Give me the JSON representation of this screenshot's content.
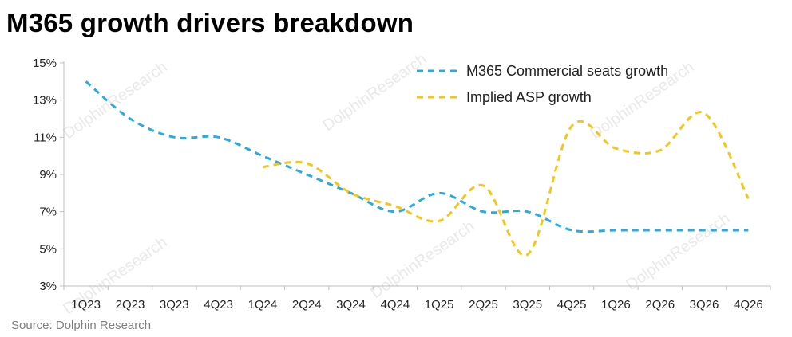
{
  "title": "M365 growth drivers breakdown",
  "source": "Source: Dolphin Research",
  "watermark": "DolphinResearch",
  "chart_data": {
    "type": "line",
    "categories": [
      "1Q23",
      "2Q23",
      "3Q23",
      "4Q23",
      "1Q24",
      "2Q24",
      "3Q24",
      "4Q24",
      "1Q25",
      "2Q25",
      "3Q25",
      "4Q25",
      "1Q26",
      "2Q26",
      "3Q26",
      "4Q26"
    ],
    "ylim": [
      3,
      15
    ],
    "yticks": [
      3,
      5,
      7,
      9,
      11,
      13,
      15
    ],
    "ytick_labels": [
      "3%",
      "5%",
      "7%",
      "9%",
      "11%",
      "13%",
      "15%"
    ],
    "xlabel": "",
    "ylabel": "",
    "legend_position": "top-right",
    "grid": false,
    "series": [
      {
        "name": "M365 Commercial seats growth",
        "color": "#29abe2",
        "style": "dashed",
        "values": [
          14,
          12,
          11,
          11,
          10,
          9,
          8,
          7,
          8,
          7,
          7,
          6,
          6,
          6,
          6,
          6
        ]
      },
      {
        "name": "Implied ASP growth",
        "color": "#f5c518",
        "style": "dashed",
        "values": [
          null,
          null,
          null,
          null,
          9.4,
          9.6,
          8.0,
          7.3,
          6.5,
          8.4,
          4.7,
          11.6,
          10.4,
          10.3,
          12.3,
          7.7
        ]
      }
    ]
  }
}
